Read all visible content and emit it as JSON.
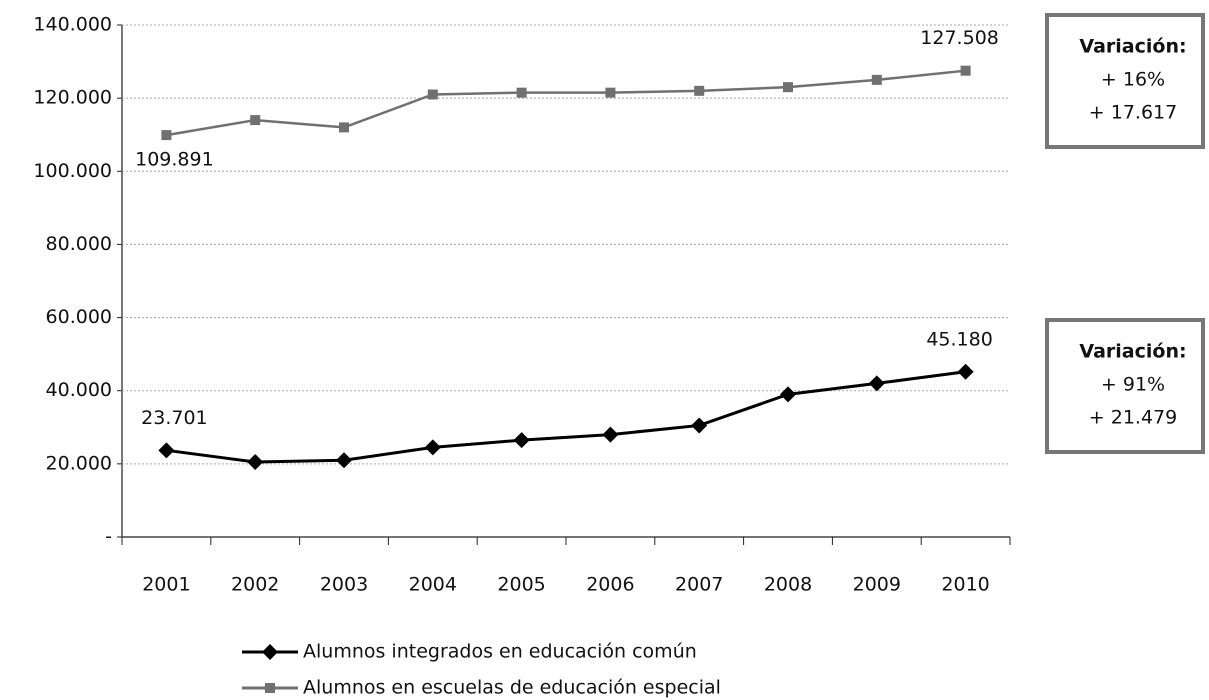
{
  "chart_data": {
    "type": "line",
    "categories": [
      "2001",
      "2002",
      "2003",
      "2004",
      "2005",
      "2006",
      "2007",
      "2008",
      "2009",
      "2010"
    ],
    "series": [
      {
        "name": "Alumnos integrados en educación común",
        "color": "#000000",
        "marker": "diamond",
        "values": [
          23701,
          20500,
          21000,
          24500,
          26500,
          28000,
          30500,
          39000,
          42000,
          45180
        ],
        "value_labels": [
          "23.701",
          null,
          null,
          null,
          null,
          null,
          null,
          null,
          null,
          "45.180"
        ]
      },
      {
        "name": "Alumnos en escuelas de educación especial",
        "color": "#707070",
        "marker": "square",
        "values": [
          109891,
          114000,
          112000,
          121000,
          121500,
          121500,
          122000,
          123000,
          125000,
          127508
        ],
        "value_labels": [
          "109.891",
          null,
          null,
          null,
          null,
          null,
          null,
          null,
          null,
          "127.508"
        ]
      }
    ],
    "ylim": [
      0,
      140000
    ],
    "yticks": [
      {
        "value": 0,
        "label": "-"
      },
      {
        "value": 20000,
        "label": "20.000"
      },
      {
        "value": 40000,
        "label": "40.000"
      },
      {
        "value": 60000,
        "label": "60.000"
      },
      {
        "value": 80000,
        "label": "80.000"
      },
      {
        "value": 100000,
        "label": "100.000"
      },
      {
        "value": 120000,
        "label": "120.000"
      },
      {
        "value": 140000,
        "label": "140.000"
      }
    ],
    "grid": true,
    "legend": "bottom",
    "annotations": [
      {
        "title": "Variación:",
        "lines": [
          "+ 16%",
          "+ 17.617"
        ]
      },
      {
        "title": "Variación:",
        "lines": [
          "+ 91%",
          "+ 21.479"
        ]
      }
    ]
  }
}
